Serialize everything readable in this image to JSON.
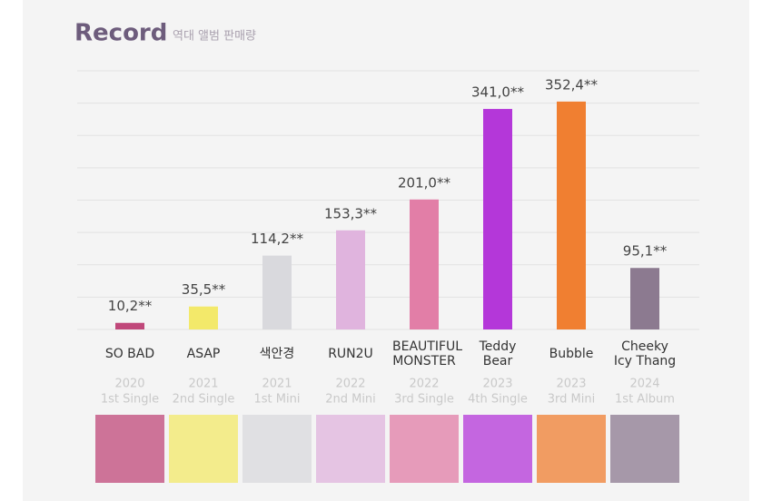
{
  "chart_data": {
    "type": "bar",
    "title": "Record",
    "subtitle": "역대 앨범 판매량",
    "categories": [
      "SO BAD",
      "ASAP",
      "색안경",
      "RUN2U",
      "BEAUTIFUL MONSTER",
      "Teddy Bear",
      "Bubble",
      "Cheeky Icy Thang"
    ],
    "years": [
      "2020",
      "2021",
      "2021",
      "2022",
      "2022",
      "2023",
      "2023",
      "2024"
    ],
    "editions": [
      "1st Single",
      "2nd Single",
      "1st Mini",
      "2nd Mini",
      "3rd Single",
      "4th Single",
      "3rd Mini",
      "1st Album"
    ],
    "values": [
      10.2,
      35.5,
      114.2,
      153.3,
      201.0,
      341.0,
      352.4,
      95.1
    ],
    "value_labels": [
      "10,2**",
      "35,5**",
      "114,2**",
      "153,3**",
      "201,0**",
      "341,0**",
      "352,4**",
      "95,1**"
    ],
    "colors": [
      "#c0487a",
      "#f3e96a",
      "#d9d9dd",
      "#e0b4de",
      "#e27ea7",
      "#b437d9",
      "#f07f31",
      "#8c7a90"
    ],
    "ylim": [
      0,
      400
    ],
    "yticks": [
      0,
      50,
      100,
      150,
      200,
      250,
      300,
      350,
      400
    ],
    "grid": true
  }
}
